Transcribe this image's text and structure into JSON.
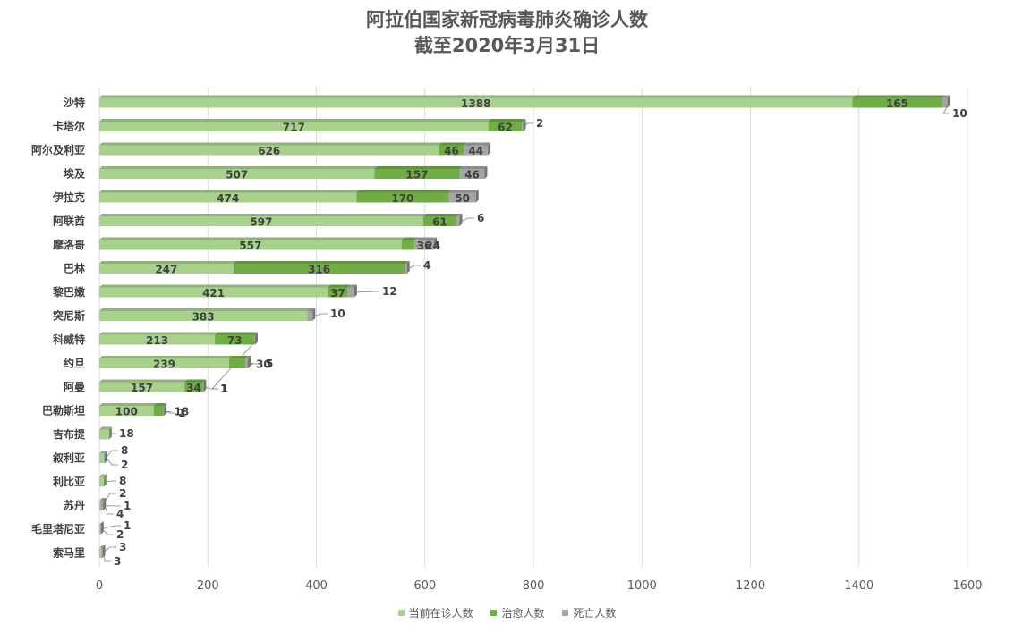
{
  "chart_data": {
    "type": "bar",
    "orientation": "horizontal",
    "stacked": true,
    "title": "阿拉伯国家新冠病毒肺炎确诊人数",
    "subtitle": "截至2020年3月31日",
    "categories": [
      "沙特",
      "卡塔尔",
      "阿尔及利亚",
      "埃及",
      "伊拉克",
      "阿联酋",
      "摩洛哥",
      "巴林",
      "黎巴嫩",
      "突尼斯",
      "科威特",
      "约旦",
      "阿曼",
      "巴勒斯坦",
      "吉布提",
      "叙利亚",
      "利比亚",
      "苏丹",
      "毛里塔尼亚",
      "索马里"
    ],
    "series": [
      {
        "name": "当前在诊人数",
        "color": "#a9d18e",
        "values": [
          1388,
          717,
          626,
          507,
          474,
          597,
          557,
          247,
          421,
          383,
          213,
          239,
          157,
          100,
          18,
          8,
          8,
          2,
          1,
          3
        ]
      },
      {
        "name": "治愈人数",
        "color": "#70ad47",
        "values": [
          165,
          62,
          46,
          157,
          170,
          61,
          24,
          316,
          37,
          0,
          73,
          30,
          34,
          18,
          0,
          0,
          0,
          1,
          0,
          0
        ]
      },
      {
        "name": "死亡人数",
        "color": "#a5a5a5",
        "values": [
          10,
          2,
          44,
          46,
          50,
          6,
          36,
          4,
          12,
          10,
          1,
          5,
          1,
          1,
          0,
          2,
          0,
          4,
          2,
          3
        ]
      }
    ],
    "xlim": [
      0,
      1600
    ],
    "xticks": [
      0,
      200,
      400,
      600,
      800,
      1000,
      1200,
      1400,
      1600
    ],
    "grid": "vertical",
    "legend": "bottom",
    "data_labels": true
  }
}
